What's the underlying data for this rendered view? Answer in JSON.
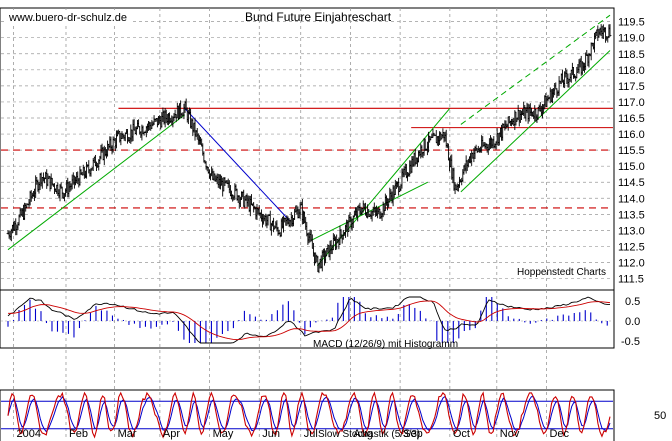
{
  "source_label": "www.buero-dr-schulz.de",
  "chart_data": [
    {
      "type": "line",
      "subtype": "ohlc",
      "title": "Bund Future Einjahreschart",
      "credit": "Hoppenstedt Charts",
      "ylim": [
        111.3,
        119.8
      ],
      "yticks": [
        "119.5",
        "119.0",
        "118.5",
        "118.0",
        "117.5",
        "117.0",
        "116.5",
        "116.0",
        "115.5",
        "115.0",
        "114.5",
        "114.0",
        "113.5",
        "113.0",
        "112.5",
        "112.0",
        "111.5"
      ],
      "grid": true,
      "x_months": [
        "2004",
        "Feb",
        "Mar",
        "Apr",
        "May",
        "Jun",
        "Jul",
        "Aug",
        "Sep",
        "Oct",
        "Nov",
        "Dec"
      ],
      "price_anchors": [
        {
          "t": 0,
          "v": 112.9
        },
        {
          "t": 3,
          "v": 113.6
        },
        {
          "t": 6,
          "v": 114.7
        },
        {
          "t": 10,
          "v": 114.2
        },
        {
          "t": 14,
          "v": 114.8
        },
        {
          "t": 20,
          "v": 115.9
        },
        {
          "t": 26,
          "v": 116.3
        },
        {
          "t": 32,
          "v": 116.8
        },
        {
          "t": 34,
          "v": 116.0
        },
        {
          "t": 37,
          "v": 114.6
        },
        {
          "t": 41,
          "v": 114.2
        },
        {
          "t": 45,
          "v": 113.6
        },
        {
          "t": 49,
          "v": 113.0
        },
        {
          "t": 53,
          "v": 113.7
        },
        {
          "t": 56,
          "v": 111.9
        },
        {
          "t": 60,
          "v": 112.8
        },
        {
          "t": 64,
          "v": 113.7
        },
        {
          "t": 67,
          "v": 113.5
        },
        {
          "t": 71,
          "v": 114.5
        },
        {
          "t": 75,
          "v": 115.6
        },
        {
          "t": 79,
          "v": 116.0
        },
        {
          "t": 81,
          "v": 114.3
        },
        {
          "t": 84,
          "v": 115.4
        },
        {
          "t": 88,
          "v": 115.8
        },
        {
          "t": 92,
          "v": 116.6
        },
        {
          "t": 96,
          "v": 116.7
        },
        {
          "t": 100,
          "v": 117.6
        },
        {
          "t": 104,
          "v": 118.1
        },
        {
          "t": 107,
          "v": 119.2
        }
      ],
      "horizontal_levels": [
        {
          "value": 116.8,
          "style": "solid",
          "color": "#cc0000"
        },
        {
          "value": 116.2,
          "style": "solid",
          "color": "#cc0000"
        },
        {
          "value": 115.5,
          "style": "dashed",
          "color": "#cc0000"
        },
        {
          "value": 113.7,
          "style": "dashed",
          "color": "#cc0000"
        }
      ],
      "trend_lines": [
        {
          "from": [
            0,
            112.4
          ],
          "to": [
            32,
            116.6
          ],
          "color": "#00aa00"
        },
        {
          "from": [
            32,
            116.8
          ],
          "to": [
            51,
            113.3
          ],
          "color": "#0000cc"
        },
        {
          "from": [
            56,
            111.9
          ],
          "to": [
            80,
            116.8
          ],
          "color": "#00aa00"
        },
        {
          "from": [
            55,
            112.7
          ],
          "to": [
            76,
            114.5
          ],
          "color": "#00aa00"
        },
        {
          "from": [
            82,
            114.2
          ],
          "to": [
            109,
            118.6
          ],
          "color": "#00aa00"
        },
        {
          "from": [
            82,
            116.3
          ],
          "to": [
            109,
            119.7
          ],
          "color": "#00aa00",
          "style": "dashed"
        }
      ],
      "colors": {
        "price": "#000000",
        "grid": "#999999"
      }
    },
    {
      "type": "line",
      "title": "MACD (12/26/9) mit Histogramm",
      "ylim": [
        -0.6,
        0.7
      ],
      "yticks": [
        "0.5",
        "0.0",
        "-0.5"
      ],
      "series": [
        {
          "role": "macd",
          "color": "#000000"
        },
        {
          "role": "signal",
          "color": "#cc0000"
        },
        {
          "role": "histogram",
          "color": "#0000cc"
        }
      ]
    },
    {
      "type": "line",
      "title": "Slow Stochastik (5/3/3)",
      "ylim": [
        0,
        100
      ],
      "yticks": [
        "50"
      ],
      "levels": [
        80,
        20
      ],
      "series": [
        {
          "role": "k",
          "color": "#cc0000"
        },
        {
          "role": "d",
          "color": "#0000cc"
        }
      ]
    }
  ]
}
